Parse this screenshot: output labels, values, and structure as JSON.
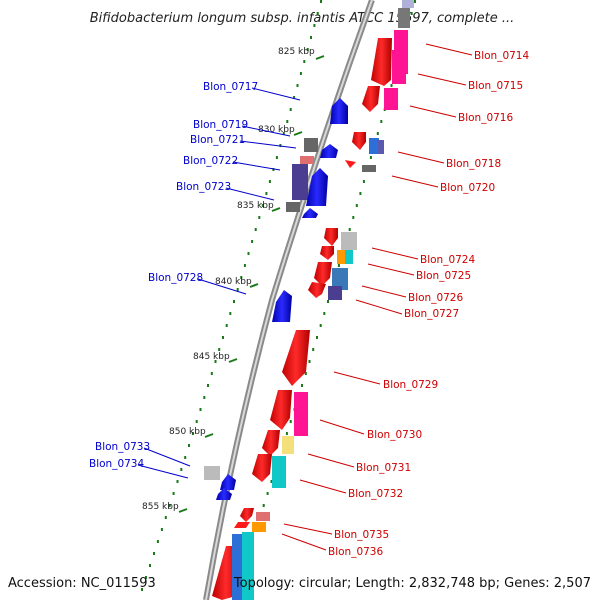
{
  "title": "Bifidobacterium longum subsp. infantis ATCC 15697, complete ...",
  "footer": {
    "accession": "Accession: NC_011593",
    "stats": "Topology: circular; Length: 2,832,748 bp; Genes: 2,507"
  },
  "colors": {
    "forward_label": "#cc0000",
    "reverse_label": "#0000cc",
    "tick": "#1a7a1a",
    "backbone": "#888888"
  },
  "kbp_marks": [
    {
      "label": "825 kbp"
    },
    {
      "label": "830 kbp"
    },
    {
      "label": "835 kbp"
    },
    {
      "label": "840 kbp"
    },
    {
      "label": "845 kbp"
    },
    {
      "label": "850 kbp"
    },
    {
      "label": "855 kbp"
    }
  ],
  "genes_forward": [
    {
      "id": "Blon_0714",
      "color": "#ff1493"
    },
    {
      "id": "Blon_0715",
      "color": "#ff1493"
    },
    {
      "id": "Blon_0716",
      "color": "#ff1493"
    },
    {
      "id": "Blon_0718",
      "color": "#2c6fd6"
    },
    {
      "id": "Blon_0720",
      "color": "#666666"
    },
    {
      "id": "Blon_0724",
      "color": "#bbbbbb"
    },
    {
      "id": "Blon_0725",
      "color": "#11c8c8"
    },
    {
      "id": "Blon_0726",
      "color": "#3a78b8"
    },
    {
      "id": "Blon_0727",
      "color": "#4b3d8f"
    },
    {
      "id": "Blon_0729",
      "color": "#ff1a1a"
    },
    {
      "id": "Blon_0730",
      "color": "#ff1493"
    },
    {
      "id": "Blon_0731",
      "color": "#f3e07a"
    },
    {
      "id": "Blon_0732",
      "color": "#11c8c8"
    },
    {
      "id": "Blon_0735",
      "color": "#e07070"
    },
    {
      "id": "Blon_0736",
      "color": "#ff9900"
    }
  ],
  "genes_reverse": [
    {
      "id": "Blon_0717",
      "color": "#0000ff"
    },
    {
      "id": "Blon_0719",
      "color": "#666666"
    },
    {
      "id": "Blon_0721",
      "color": "#0000ff"
    },
    {
      "id": "Blon_0722",
      "color": "#e07070"
    },
    {
      "id": "Blon_0723",
      "color": "#4b3d8f"
    },
    {
      "id": "Blon_0728",
      "color": "#0000ff"
    },
    {
      "id": "Blon_0733",
      "color": "#bbbbbb"
    },
    {
      "id": "Blon_0734",
      "color": "#0000ff"
    }
  ]
}
